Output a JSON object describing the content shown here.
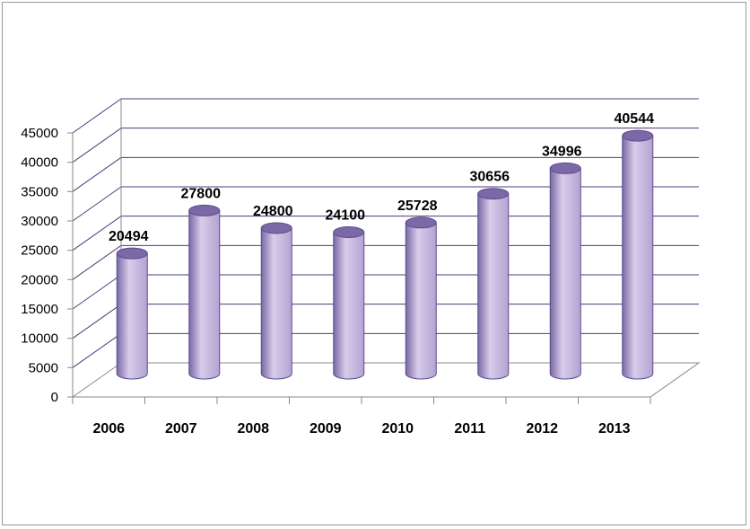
{
  "chart_data": {
    "type": "bar",
    "style": "3d-cylinder",
    "categories": [
      "2006",
      "2007",
      "2008",
      "2009",
      "2010",
      "2011",
      "2012",
      "2013"
    ],
    "series": [
      {
        "values": [
          20494,
          27800,
          24800,
          24100,
          25728,
          30656,
          34996,
          40544
        ]
      }
    ],
    "data_labels": [
      "20494",
      "27800",
      "24800",
      "24100",
      "25728",
      "30656",
      "34996",
      "40544"
    ],
    "y_ticks": [
      "0",
      "5000",
      "10000",
      "15000",
      "20000",
      "25000",
      "30000",
      "35000",
      "40000",
      "45000"
    ],
    "ylim": [
      0,
      45000
    ],
    "title": "",
    "xlabel": "",
    "ylabel": "",
    "grid": true,
    "legend": "none",
    "colors": {
      "bar_fill": "#b3a2d2",
      "bar_dark": "#7b68a6",
      "bar_light": "#d6cdea",
      "bar_outline": "#5f4b8b",
      "grid": "#4b3c7a"
    }
  }
}
